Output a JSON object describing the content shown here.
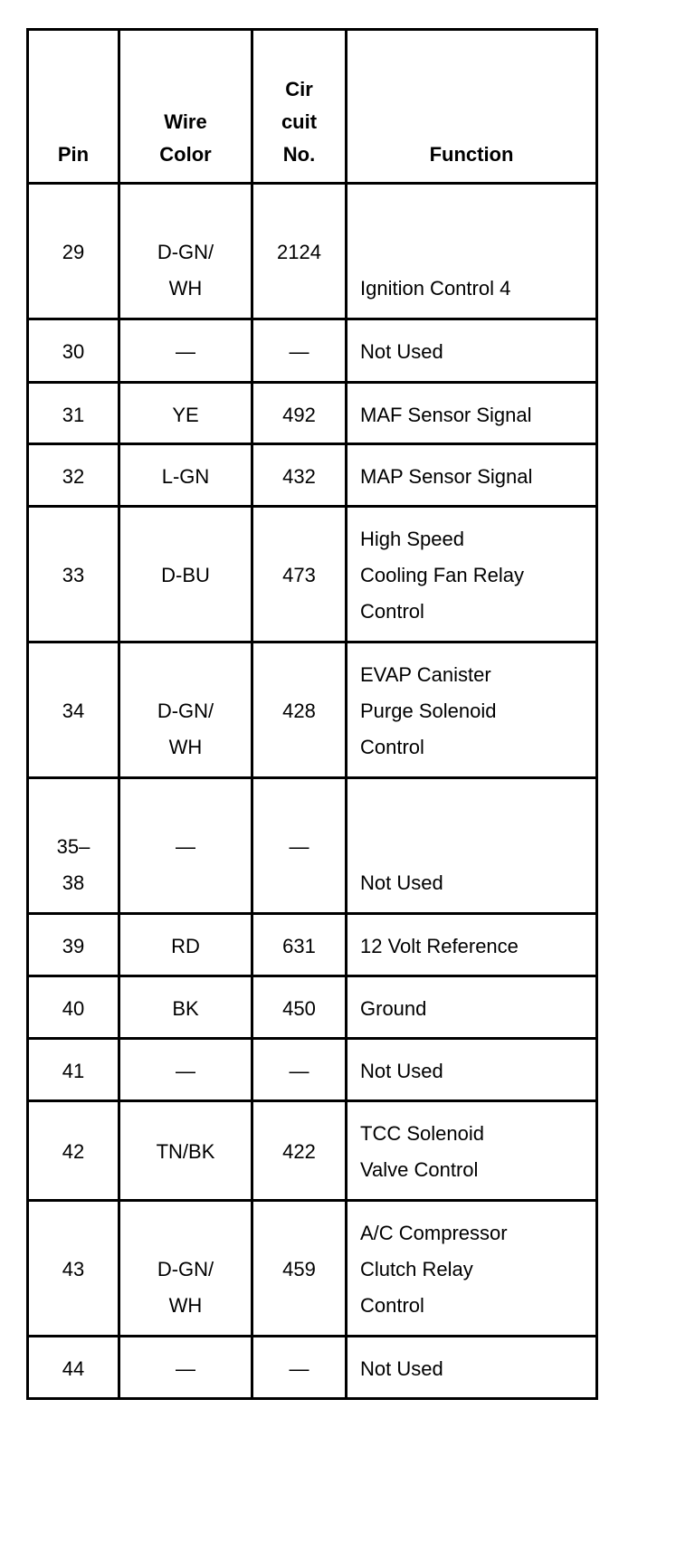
{
  "headers": {
    "pin": "Pin",
    "wire_color": [
      "Wire",
      "Color"
    ],
    "circuit": [
      "Cir",
      "cuit",
      "No."
    ],
    "function": "Function"
  },
  "rows": [
    {
      "pin": [
        "29"
      ],
      "wire": [
        "D-GN/",
        "WH"
      ],
      "circuit": "2124",
      "function": [
        "Ignition Control 4"
      ]
    },
    {
      "pin": [
        "30"
      ],
      "wire": [
        "—"
      ],
      "circuit": "—",
      "function": [
        "Not Used"
      ]
    },
    {
      "pin": [
        "31"
      ],
      "wire": [
        "YE"
      ],
      "circuit": "492",
      "function": [
        "MAF Sensor Signal"
      ]
    },
    {
      "pin": [
        "32"
      ],
      "wire": [
        "L-GN"
      ],
      "circuit": "432",
      "function": [
        "MAP Sensor Signal"
      ]
    },
    {
      "pin": [
        "33"
      ],
      "wire": [
        "D-BU"
      ],
      "circuit": "473",
      "function": [
        "High Speed",
        "Cooling Fan Relay",
        "Control"
      ]
    },
    {
      "pin": [
        "34"
      ],
      "wire": [
        "D-GN/",
        "WH"
      ],
      "circuit": "428",
      "function": [
        "EVAP Canister",
        "Purge Solenoid",
        "Control"
      ]
    },
    {
      "pin": [
        "35–",
        "38"
      ],
      "wire": [
        "—"
      ],
      "circuit": "—",
      "function": [
        "Not Used"
      ]
    },
    {
      "pin": [
        "39"
      ],
      "wire": [
        "RD"
      ],
      "circuit": "631",
      "function": [
        "12 Volt Reference"
      ]
    },
    {
      "pin": [
        "40"
      ],
      "wire": [
        "BK"
      ],
      "circuit": "450",
      "function": [
        "Ground"
      ]
    },
    {
      "pin": [
        "41"
      ],
      "wire": [
        "—"
      ],
      "circuit": "—",
      "function": [
        "Not Used"
      ]
    },
    {
      "pin": [
        "42"
      ],
      "wire": [
        "TN/BK"
      ],
      "circuit": "422",
      "function": [
        "TCC Solenoid",
        "Valve Control"
      ]
    },
    {
      "pin": [
        "43"
      ],
      "wire": [
        "D-GN/",
        "WH"
      ],
      "circuit": "459",
      "function": [
        "A/C Compressor",
        "Clutch Relay",
        "Control"
      ]
    },
    {
      "pin": [
        "44"
      ],
      "wire": [
        "—"
      ],
      "circuit": "—",
      "function": [
        "Not Used"
      ]
    }
  ]
}
